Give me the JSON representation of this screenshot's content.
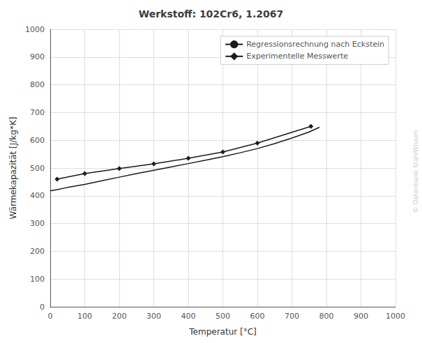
{
  "chart_data": {
    "type": "line",
    "title": "Werkstoff: 102Cr6, 1.2067",
    "xlabel": "Temperatur [°C]",
    "ylabel": "Wärmekapazität [J/kg*K]",
    "xlim": [
      0,
      1000
    ],
    "ylim": [
      0,
      1000
    ],
    "xticks": [
      0,
      100,
      200,
      300,
      400,
      500,
      600,
      700,
      800,
      900,
      1000
    ],
    "yticks": [
      0,
      100,
      200,
      300,
      400,
      500,
      600,
      700,
      800,
      900,
      1000
    ],
    "grid": true,
    "legend": "upper right",
    "series": [
      {
        "name": "Regressionsrechnung nach Eckstein",
        "color": "#1a1a1a",
        "marker": "none",
        "line_style": "solid",
        "x": [
          0,
          20,
          50,
          100,
          150,
          200,
          250,
          300,
          350,
          400,
          450,
          500,
          550,
          600,
          650,
          700,
          750,
          780
        ],
        "values": [
          418,
          422,
          430,
          441,
          454,
          467,
          480,
          492,
          504,
          516,
          528,
          541,
          555,
          570,
          588,
          608,
          630,
          647
        ]
      },
      {
        "name": "Experimentelle Messwerte",
        "color": "#1a1a1a",
        "marker": "diamond",
        "line_style": "solid",
        "x": [
          20,
          100,
          200,
          300,
          400,
          500,
          600,
          755
        ],
        "values": [
          460,
          480,
          498,
          515,
          535,
          558,
          590,
          650
        ]
      }
    ],
    "annotations": [
      {
        "text": "© Datenbank StahlWissen",
        "color": "#cccccc"
      }
    ]
  }
}
